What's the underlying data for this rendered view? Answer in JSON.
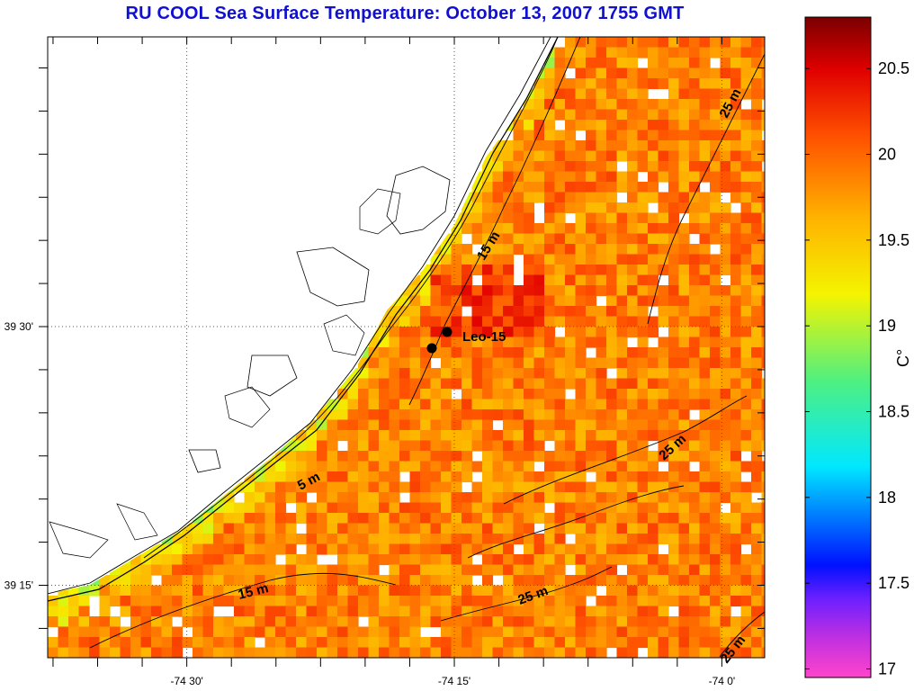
{
  "title": "RU COOL  Sea Surface Temperature:  October 13, 2007 1755 GMT",
  "axes": {
    "x_ticks": [
      {
        "value": -74.5,
        "label": "-74 30'"
      },
      {
        "value": -74.25,
        "label": "-74 15'"
      },
      {
        "value": -74.0,
        "label": "-74 0'"
      }
    ],
    "y_ticks": [
      {
        "value": 39.5,
        "label": "39 30'"
      },
      {
        "value": 39.25,
        "label": "39 15'"
      }
    ],
    "xlim": [
      -74.63,
      -73.96
    ],
    "ylim": [
      39.18,
      39.78
    ],
    "grid": "dotted"
  },
  "colorbar": {
    "unit_label": "C°",
    "range": [
      16.95,
      20.8
    ],
    "ticks": [
      {
        "value": 20.5,
        "label": "20.5"
      },
      {
        "value": 20,
        "label": "20"
      },
      {
        "value": 19.5,
        "label": "19.5"
      },
      {
        "value": 19,
        "label": "19"
      },
      {
        "value": 18.5,
        "label": "18.5"
      },
      {
        "value": 18,
        "label": "18"
      },
      {
        "value": 17.5,
        "label": "17.5"
      },
      {
        "value": 17,
        "label": "17"
      }
    ]
  },
  "contour_labels": [
    {
      "text": "25 m"
    },
    {
      "text": "15 m"
    },
    {
      "text": "25 m"
    },
    {
      "text": "5 m"
    },
    {
      "text": "15 m"
    },
    {
      "text": "25 m"
    },
    {
      "text": "25 m"
    }
  ],
  "stations": [
    {
      "label": "Leo-15"
    }
  ],
  "colors": {
    "title": "#1010d0",
    "land": "#ffffff",
    "coastline": "#000000"
  }
}
